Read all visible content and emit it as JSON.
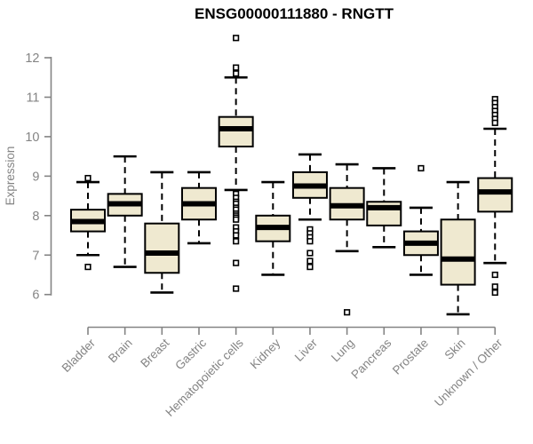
{
  "page": {
    "background": "#ffffff"
  },
  "chart_data": {
    "type": "boxplot",
    "title": "ENSG00000111880 - RNGTT",
    "ylabel": "Expression",
    "xlabel": "",
    "ylim": [
      6,
      12
    ],
    "yticks": [
      6,
      7,
      8,
      9,
      10,
      11,
      12
    ],
    "grid": false,
    "legend": "none",
    "x_label_rotation_deg": 45,
    "categories": [
      "Bladder",
      "Brain",
      "Breast",
      "Gastric",
      "Hematopoietic cells",
      "Kidney",
      "Liver",
      "Lung",
      "Pancreas",
      "Prostate",
      "Skin",
      "Unknown / Other"
    ],
    "series": [
      {
        "category": "Bladder",
        "whisker_low": 7.0,
        "q1": 7.6,
        "median": 7.85,
        "q3": 8.15,
        "whisker_high": 8.85,
        "outliers": [
          8.95,
          6.7
        ]
      },
      {
        "category": "Brain",
        "whisker_low": 6.7,
        "q1": 8.0,
        "median": 8.3,
        "q3": 8.55,
        "whisker_high": 9.5,
        "outliers": []
      },
      {
        "category": "Breast",
        "whisker_low": 6.05,
        "q1": 6.55,
        "median": 7.05,
        "q3": 7.8,
        "whisker_high": 9.1,
        "outliers": []
      },
      {
        "category": "Gastric",
        "whisker_low": 7.3,
        "q1": 7.9,
        "median": 8.3,
        "q3": 8.7,
        "whisker_high": 9.1,
        "outliers": []
      },
      {
        "category": "Hematopoietic cells",
        "whisker_low": 8.65,
        "q1": 9.75,
        "median": 10.2,
        "q3": 10.5,
        "whisker_high": 11.5,
        "outliers": [
          12.5,
          11.75,
          11.6,
          8.55,
          8.45,
          8.35,
          8.3,
          8.2,
          8.15,
          8.05,
          8.0,
          7.95,
          7.9,
          7.7,
          7.6,
          7.5,
          7.35,
          6.8,
          6.15
        ]
      },
      {
        "category": "Kidney",
        "whisker_low": 6.5,
        "q1": 7.35,
        "median": 7.7,
        "q3": 8.0,
        "whisker_high": 8.85,
        "outliers": []
      },
      {
        "category": "Liver",
        "whisker_low": 7.9,
        "q1": 8.45,
        "median": 8.75,
        "q3": 9.1,
        "whisker_high": 9.55,
        "outliers": [
          7.65,
          7.55,
          7.45,
          7.35,
          7.05,
          6.85,
          6.7
        ]
      },
      {
        "category": "Lung",
        "whisker_low": 7.1,
        "q1": 7.9,
        "median": 8.25,
        "q3": 8.7,
        "whisker_high": 9.3,
        "outliers": [
          5.55
        ]
      },
      {
        "category": "Pancreas",
        "whisker_low": 7.2,
        "q1": 7.75,
        "median": 8.2,
        "q3": 8.35,
        "whisker_high": 9.2,
        "outliers": []
      },
      {
        "category": "Prostate",
        "whisker_low": 6.5,
        "q1": 7.0,
        "median": 7.3,
        "q3": 7.6,
        "whisker_high": 8.2,
        "outliers": [
          9.2
        ]
      },
      {
        "category": "Skin",
        "whisker_low": 5.5,
        "q1": 6.25,
        "median": 6.9,
        "q3": 7.9,
        "whisker_high": 8.85,
        "outliers": []
      },
      {
        "category": "Unknown / Other",
        "whisker_low": 6.8,
        "q1": 8.1,
        "median": 8.6,
        "q3": 8.95,
        "whisker_high": 10.2,
        "outliers": [
          10.95,
          10.85,
          10.75,
          10.65,
          10.55,
          10.45,
          10.35,
          6.5,
          6.2,
          6.05
        ]
      }
    ],
    "colors": {
      "box_fill": "#EFE9D0",
      "box_border": "#000000",
      "median": "#000000",
      "whisker": "#000000",
      "outlier_border": "#000000",
      "outlier_fill": "#ffffff",
      "axis": "#848484",
      "tick_label": "#848484",
      "title": "#000000"
    }
  }
}
